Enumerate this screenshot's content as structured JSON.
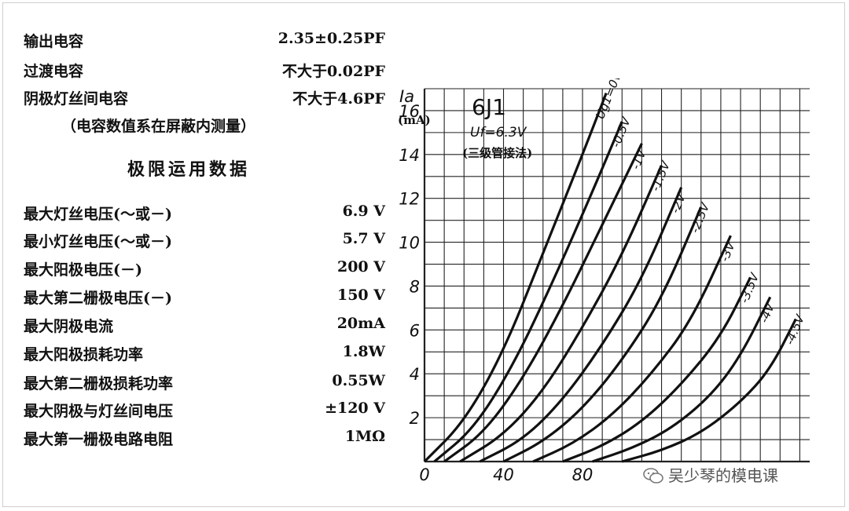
{
  "capacitance": [
    {
      "label": "输出电容",
      "value": "2.35±0.25PF"
    },
    {
      "label": "过渡电容",
      "value": "不大于0.02PF"
    },
    {
      "label": "阴极灯丝间电容",
      "value": "不大于4.6PF"
    }
  ],
  "capacitance_note": "（电容数值系在屏蔽内测量）",
  "limits_heading": "极限运用数据",
  "limits": [
    {
      "label": "最大灯丝电压(～或－)",
      "value": "6.9 V"
    },
    {
      "label": "最小灯丝电压(～或－)",
      "value": "5.7 V"
    },
    {
      "label": "最大阳极电压(－)",
      "value": "200 V"
    },
    {
      "label": "最大第二栅极电压(－)",
      "value": "150 V"
    },
    {
      "label": "最大阴极电流",
      "value": "20mA"
    },
    {
      "label": "最大阳极损耗功率",
      "value": "1.8W"
    },
    {
      "label": "最大第二栅极损耗功率",
      "value": "0.55W"
    },
    {
      "label": "最大阴极与灯丝间电压",
      "value": "±120 V"
    },
    {
      "label": "最大第一栅极电路电阻",
      "value": "1MΩ"
    }
  ],
  "chart_data": {
    "type": "line",
    "title": "6J1",
    "subtitle": "Uf=6.3V",
    "note": "(三级管接法)",
    "ylabel": "Ia",
    "yunit": "(mA)",
    "ylim": [
      0,
      17
    ],
    "xlim": [
      0,
      195
    ],
    "y_ticks": [
      0,
      2,
      4,
      6,
      8,
      10,
      12,
      14,
      16
    ],
    "x_ticks": [
      0,
      40,
      80
    ],
    "series": [
      {
        "name": "Ug1=0V",
        "x": [
          0,
          20,
          40,
          60,
          80,
          92
        ],
        "values": [
          0,
          1.8,
          5.0,
          9.5,
          14.0,
          16.8
        ]
      },
      {
        "name": "-0.5V",
        "x": [
          5,
          25,
          45,
          65,
          85,
          100
        ],
        "values": [
          0,
          1.5,
          4.4,
          8.2,
          12.3,
          15.5
        ]
      },
      {
        "name": "-1V",
        "x": [
          10,
          30,
          50,
          70,
          90,
          110
        ],
        "values": [
          0,
          1.3,
          3.8,
          7.1,
          10.8,
          14.5
        ]
      },
      {
        "name": "-1.5V",
        "x": [
          18,
          40,
          60,
          80,
          100,
          120
        ],
        "values": [
          0,
          1.2,
          3.2,
          6.1,
          9.4,
          13.5
        ]
      },
      {
        "name": "-2V",
        "x": [
          28,
          50,
          70,
          90,
          110,
          130
        ],
        "values": [
          0,
          1.0,
          2.8,
          5.3,
          8.3,
          12.5
        ]
      },
      {
        "name": "-2.5V",
        "x": [
          40,
          60,
          80,
          100,
          120,
          140
        ],
        "values": [
          0,
          0.9,
          2.4,
          4.6,
          7.4,
          11.6
        ]
      },
      {
        "name": "-3V",
        "x": [
          55,
          75,
          95,
          115,
          135,
          155
        ],
        "values": [
          0,
          0.8,
          2.1,
          4.0,
          6.4,
          10.3
        ]
      },
      {
        "name": "-3.5V",
        "x": [
          70,
          90,
          110,
          130,
          150,
          165
        ],
        "values": [
          0,
          0.7,
          1.8,
          3.5,
          5.7,
          8.4
        ]
      },
      {
        "name": "-4V",
        "x": [
          85,
          105,
          125,
          145,
          160,
          175
        ],
        "values": [
          0,
          0.6,
          1.5,
          3.0,
          4.8,
          7.5
        ]
      },
      {
        "name": "-4.5V",
        "x": [
          100,
          120,
          140,
          160,
          175,
          188
        ],
        "values": [
          0,
          0.5,
          1.3,
          2.7,
          4.2,
          6.5
        ]
      }
    ]
  },
  "watermark": "吴少琴的模电课",
  "watermark_icon": "wechat-icon"
}
